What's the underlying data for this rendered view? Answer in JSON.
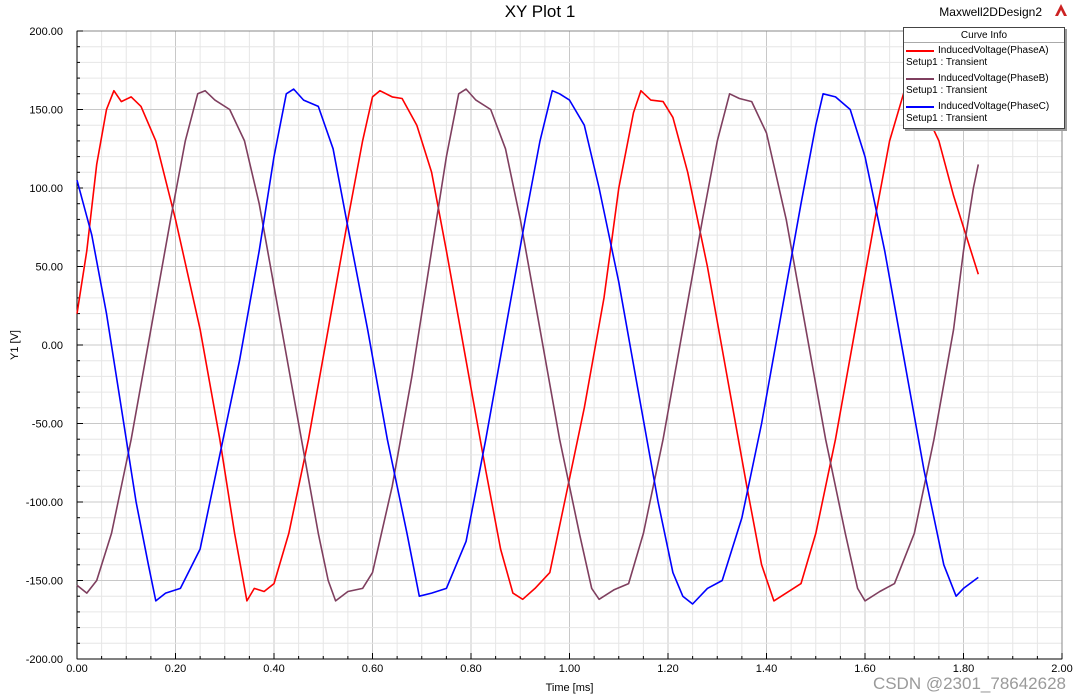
{
  "header": {
    "title": "XY Plot 1",
    "design": "Maxwell2DDesign2"
  },
  "legend": {
    "header": "Curve Info",
    "entries": [
      {
        "name": "InducedVoltage(PhaseA)",
        "sub": "Setup1 : Transient",
        "color": "#ff0000"
      },
      {
        "name": "InducedVoltage(PhaseB)",
        "sub": "Setup1 : Transient",
        "color": "#7f3f5f"
      },
      {
        "name": "InducedVoltage(PhaseC)",
        "sub": "Setup1 : Transient",
        "color": "#0000ff"
      }
    ]
  },
  "watermark": "CSDN @2301_78642628",
  "chart_data": {
    "type": "line",
    "title": "XY Plot 1",
    "xlabel": "Time [ms]",
    "ylabel": "Y1 [V]",
    "xlim": [
      0,
      2.0
    ],
    "ylim": [
      -200,
      200
    ],
    "x_ticks": [
      "0.00",
      "0.20",
      "0.40",
      "0.60",
      "0.80",
      "1.00",
      "1.20",
      "1.40",
      "1.60",
      "1.80",
      "2.00"
    ],
    "y_ticks": [
      "200.00",
      "150.00",
      "100.00",
      "50.00",
      "0.00",
      "-50.00",
      "-100.00",
      "-150.00",
      "-200.00"
    ],
    "grid": true,
    "legend_position": "top-right",
    "series": [
      {
        "name": "InducedVoltage(PhaseA)",
        "color": "#ff0000",
        "points": [
          [
            0.0,
            20
          ],
          [
            0.02,
            60
          ],
          [
            0.04,
            115
          ],
          [
            0.06,
            150
          ],
          [
            0.075,
            162
          ],
          [
            0.09,
            155
          ],
          [
            0.11,
            158
          ],
          [
            0.13,
            152
          ],
          [
            0.16,
            130
          ],
          [
            0.2,
            80
          ],
          [
            0.25,
            10
          ],
          [
            0.29,
            -60
          ],
          [
            0.32,
            -120
          ],
          [
            0.345,
            -163
          ],
          [
            0.36,
            -155
          ],
          [
            0.38,
            -157
          ],
          [
            0.4,
            -152
          ],
          [
            0.43,
            -120
          ],
          [
            0.47,
            -60
          ],
          [
            0.51,
            10
          ],
          [
            0.55,
            80
          ],
          [
            0.58,
            130
          ],
          [
            0.6,
            158
          ],
          [
            0.615,
            162
          ],
          [
            0.64,
            158
          ],
          [
            0.66,
            157
          ],
          [
            0.69,
            140
          ],
          [
            0.72,
            110
          ],
          [
            0.75,
            60
          ],
          [
            0.79,
            -10
          ],
          [
            0.83,
            -80
          ],
          [
            0.86,
            -130
          ],
          [
            0.885,
            -158
          ],
          [
            0.905,
            -162
          ],
          [
            0.93,
            -155
          ],
          [
            0.96,
            -145
          ],
          [
            0.99,
            -100
          ],
          [
            1.03,
            -40
          ],
          [
            1.07,
            30
          ],
          [
            1.1,
            100
          ],
          [
            1.13,
            148
          ],
          [
            1.145,
            162
          ],
          [
            1.165,
            156
          ],
          [
            1.19,
            155
          ],
          [
            1.21,
            145
          ],
          [
            1.24,
            110
          ],
          [
            1.28,
            50
          ],
          [
            1.32,
            -20
          ],
          [
            1.36,
            -90
          ],
          [
            1.39,
            -140
          ],
          [
            1.415,
            -163
          ],
          [
            1.44,
            -158
          ],
          [
            1.47,
            -152
          ],
          [
            1.5,
            -120
          ],
          [
            1.54,
            -60
          ],
          [
            1.58,
            10
          ],
          [
            1.62,
            80
          ],
          [
            1.65,
            130
          ],
          [
            1.68,
            162
          ],
          [
            1.7,
            158
          ],
          [
            1.72,
            150
          ],
          [
            1.75,
            130
          ],
          [
            1.78,
            95
          ],
          [
            1.81,
            65
          ],
          [
            1.83,
            45
          ]
        ]
      },
      {
        "name": "InducedVoltage(PhaseB)",
        "color": "#7f3f5f",
        "points": [
          [
            0.0,
            -153
          ],
          [
            0.02,
            -158
          ],
          [
            0.04,
            -150
          ],
          [
            0.07,
            -120
          ],
          [
            0.11,
            -60
          ],
          [
            0.15,
            10
          ],
          [
            0.19,
            80
          ],
          [
            0.22,
            130
          ],
          [
            0.245,
            160
          ],
          [
            0.26,
            162
          ],
          [
            0.28,
            156
          ],
          [
            0.31,
            150
          ],
          [
            0.34,
            130
          ],
          [
            0.37,
            90
          ],
          [
            0.41,
            20
          ],
          [
            0.45,
            -50
          ],
          [
            0.49,
            -120
          ],
          [
            0.51,
            -150
          ],
          [
            0.525,
            -163
          ],
          [
            0.55,
            -157
          ],
          [
            0.58,
            -155
          ],
          [
            0.6,
            -145
          ],
          [
            0.64,
            -90
          ],
          [
            0.68,
            -20
          ],
          [
            0.72,
            60
          ],
          [
            0.75,
            120
          ],
          [
            0.775,
            160
          ],
          [
            0.79,
            163
          ],
          [
            0.81,
            156
          ],
          [
            0.84,
            150
          ],
          [
            0.87,
            125
          ],
          [
            0.9,
            80
          ],
          [
            0.94,
            10
          ],
          [
            0.98,
            -60
          ],
          [
            1.02,
            -120
          ],
          [
            1.045,
            -155
          ],
          [
            1.06,
            -162
          ],
          [
            1.09,
            -156
          ],
          [
            1.12,
            -152
          ],
          [
            1.15,
            -120
          ],
          [
            1.19,
            -60
          ],
          [
            1.23,
            10
          ],
          [
            1.27,
            80
          ],
          [
            1.3,
            130
          ],
          [
            1.325,
            160
          ],
          [
            1.345,
            157
          ],
          [
            1.37,
            155
          ],
          [
            1.4,
            135
          ],
          [
            1.44,
            80
          ],
          [
            1.48,
            10
          ],
          [
            1.52,
            -60
          ],
          [
            1.56,
            -120
          ],
          [
            1.585,
            -155
          ],
          [
            1.6,
            -163
          ],
          [
            1.63,
            -157
          ],
          [
            1.66,
            -152
          ],
          [
            1.7,
            -120
          ],
          [
            1.74,
            -60
          ],
          [
            1.78,
            10
          ],
          [
            1.8,
            60
          ],
          [
            1.82,
            100
          ],
          [
            1.83,
            115
          ]
        ]
      },
      {
        "name": "InducedVoltage(PhaseC)",
        "color": "#0000ff",
        "points": [
          [
            0.0,
            105
          ],
          [
            0.03,
            70
          ],
          [
            0.06,
            20
          ],
          [
            0.09,
            -40
          ],
          [
            0.12,
            -100
          ],
          [
            0.145,
            -140
          ],
          [
            0.16,
            -163
          ],
          [
            0.18,
            -158
          ],
          [
            0.21,
            -155
          ],
          [
            0.25,
            -130
          ],
          [
            0.29,
            -70
          ],
          [
            0.33,
            -10
          ],
          [
            0.37,
            60
          ],
          [
            0.4,
            120
          ],
          [
            0.425,
            160
          ],
          [
            0.44,
            163
          ],
          [
            0.46,
            156
          ],
          [
            0.49,
            152
          ],
          [
            0.52,
            125
          ],
          [
            0.55,
            75
          ],
          [
            0.59,
            10
          ],
          [
            0.63,
            -60
          ],
          [
            0.67,
            -120
          ],
          [
            0.695,
            -160
          ],
          [
            0.72,
            -158
          ],
          [
            0.75,
            -155
          ],
          [
            0.79,
            -125
          ],
          [
            0.83,
            -60
          ],
          [
            0.87,
            10
          ],
          [
            0.91,
            80
          ],
          [
            0.94,
            130
          ],
          [
            0.965,
            162
          ],
          [
            0.98,
            160
          ],
          [
            1.0,
            156
          ],
          [
            1.03,
            140
          ],
          [
            1.06,
            100
          ],
          [
            1.1,
            40
          ],
          [
            1.14,
            -30
          ],
          [
            1.18,
            -100
          ],
          [
            1.21,
            -145
          ],
          [
            1.23,
            -160
          ],
          [
            1.25,
            -165
          ],
          [
            1.28,
            -155
          ],
          [
            1.31,
            -150
          ],
          [
            1.35,
            -110
          ],
          [
            1.39,
            -50
          ],
          [
            1.43,
            20
          ],
          [
            1.47,
            90
          ],
          [
            1.5,
            140
          ],
          [
            1.515,
            160
          ],
          [
            1.54,
            158
          ],
          [
            1.57,
            150
          ],
          [
            1.6,
            120
          ],
          [
            1.64,
            60
          ],
          [
            1.68,
            -10
          ],
          [
            1.72,
            -80
          ],
          [
            1.76,
            -140
          ],
          [
            1.785,
            -160
          ],
          [
            1.8,
            -155
          ],
          [
            1.83,
            -148
          ]
        ]
      }
    ]
  }
}
